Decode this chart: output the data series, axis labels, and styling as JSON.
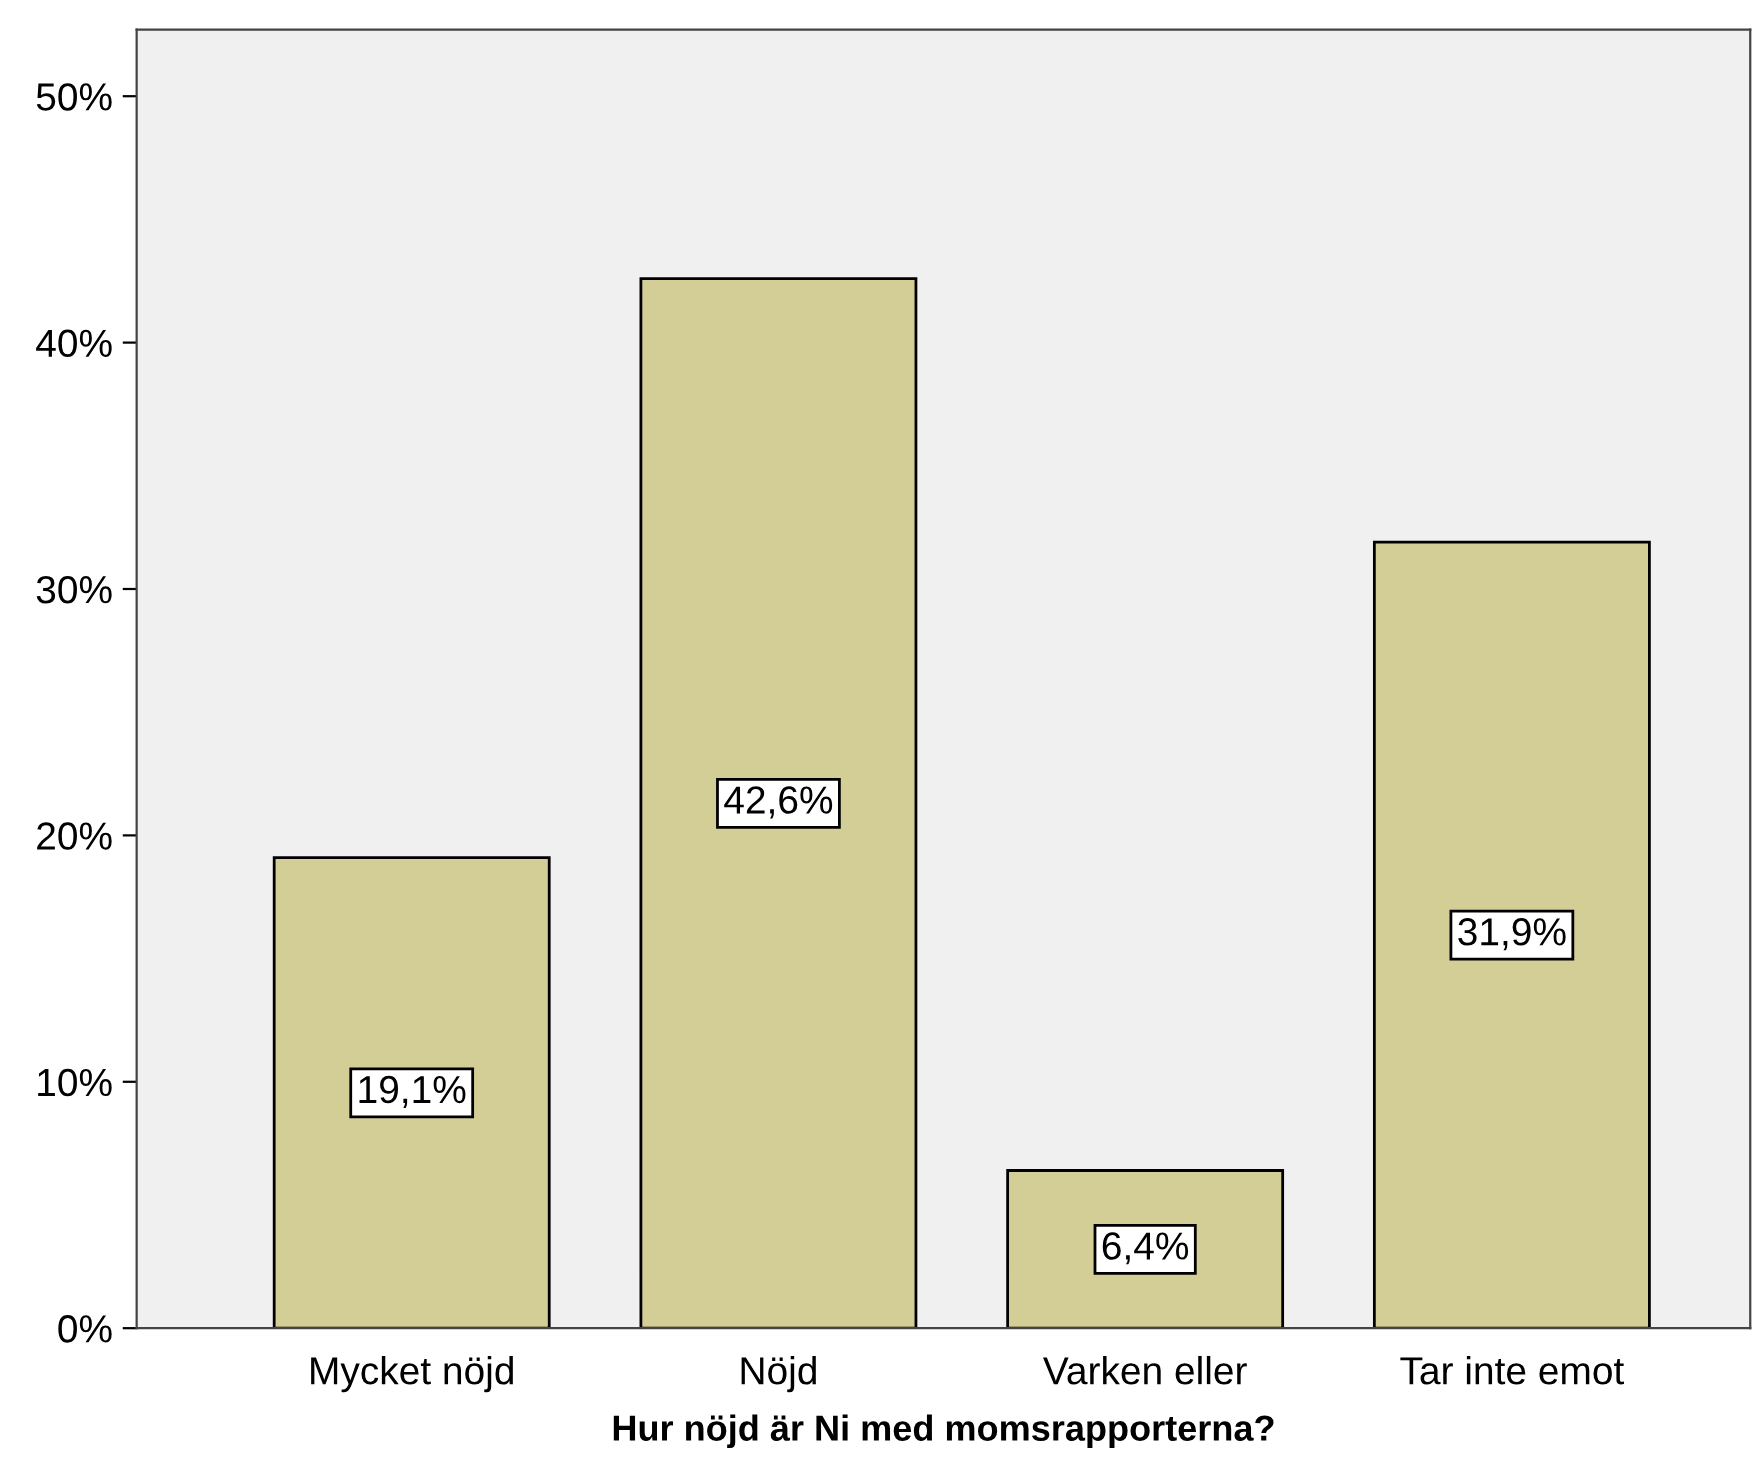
{
  "chart_data": {
    "type": "bar",
    "xlabel": "Hur nöjd är Ni med momsrapporterna?",
    "categories": [
      "Mycket nöjd",
      "Nöjd",
      "Varken eller",
      "Tar inte emot"
    ],
    "values": [
      19.1,
      42.6,
      6.4,
      31.9
    ],
    "value_labels": [
      "19,1%",
      "42,6%",
      "6,4%",
      "31,9%"
    ],
    "color": "#d3cd96",
    "ylim": [
      0,
      52.7
    ],
    "yticks": [
      {
        "value": 0,
        "label": "0%"
      },
      {
        "value": 10,
        "label": "10%"
      },
      {
        "value": 20,
        "label": "20%"
      },
      {
        "value": 30,
        "label": "30%"
      },
      {
        "value": 40,
        "label": "40%"
      },
      {
        "value": 50,
        "label": "50%"
      }
    ],
    "grid": false
  }
}
